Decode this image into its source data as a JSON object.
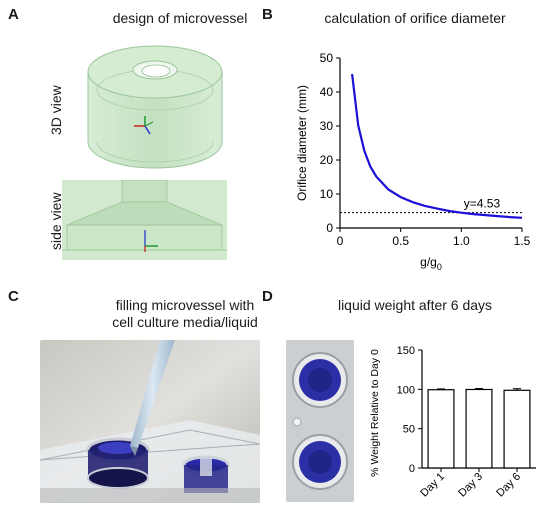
{
  "panels": {
    "a": {
      "letter": "A",
      "title": "design of microvessel",
      "view_3d": "3D view",
      "view_side": "side view"
    },
    "b": {
      "letter": "B",
      "title": "calculation of orifice diameter"
    },
    "c": {
      "letter": "C",
      "title_line1": "filling microvessel with",
      "title_line2": "cell culture media/liquid"
    },
    "d": {
      "letter": "D",
      "title": "liquid weight after 6 days"
    }
  },
  "chart_data": [
    {
      "type": "line",
      "panel": "B",
      "ylabel": "Orifice diameter (mm)",
      "xlabel": "g/g0",
      "xlim": [
        0,
        1.5
      ],
      "ylim": [
        0,
        50
      ],
      "xticks": [
        "0",
        "0.5",
        "1.0",
        "1.5"
      ],
      "yticks": [
        "0",
        "10",
        "20",
        "30",
        "40",
        "50"
      ],
      "series": [
        {
          "color": "#1a10d8",
          "x": [
            0.1,
            0.15,
            0.2,
            0.25,
            0.3,
            0.4,
            0.5,
            0.6,
            0.7,
            0.8,
            0.9,
            1.0,
            1.1,
            1.2,
            1.3,
            1.4,
            1.5
          ],
          "values": [
            45.3,
            30.2,
            22.7,
            18.1,
            15.1,
            11.3,
            9.1,
            7.6,
            6.5,
            5.7,
            5.0,
            4.5,
            4.1,
            3.8,
            3.5,
            3.2,
            3.0
          ]
        }
      ],
      "reference_line": {
        "y": 4.53,
        "label": "y=4.53",
        "style": "dotted"
      },
      "grid": false
    },
    {
      "type": "bar",
      "panel": "D",
      "ylabel": "% Weight Relative to Day 0",
      "categories": [
        "Day 1",
        "Day 3",
        "Day 6"
      ],
      "values": [
        99.5,
        99.8,
        98.8
      ],
      "errors": [
        1.0,
        1.2,
        2.0
      ],
      "ylim": [
        0,
        150
      ],
      "yticks": [
        "0",
        "50",
        "100",
        "150"
      ],
      "bar_fill": "#ffffff",
      "bar_edge": "#000000"
    }
  ],
  "colors": {
    "vessel_green": "#cfe8cf",
    "vessel_edge": "#9cc79c",
    "curve_blue": "#1a10d8",
    "liquid_blue": "#2b2f9e"
  }
}
